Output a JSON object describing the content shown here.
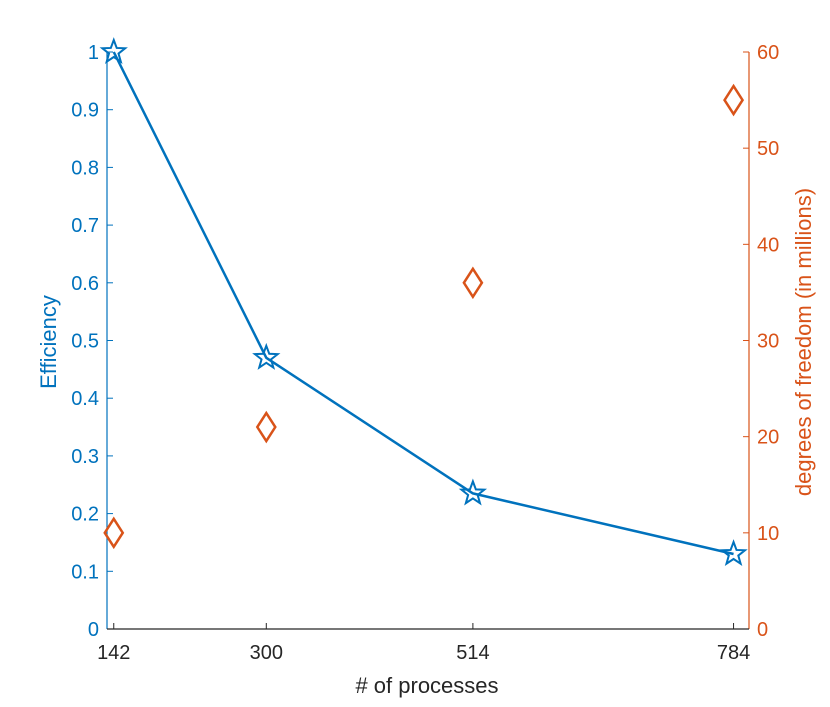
{
  "colors": {
    "left_axis": "#0072BD",
    "right_axis": "#D95319",
    "bottom_axis": "#262626",
    "background": "#ffffff"
  },
  "chart_data": {
    "type": "line",
    "x_ticks": [
      142,
      300,
      514,
      784
    ],
    "x_tick_labels": [
      "142",
      "300",
      "514",
      "784"
    ],
    "xlabel": "# of processes",
    "xlim": [
      135,
      800
    ],
    "left_axis": {
      "label": "Efficiency",
      "ylim": [
        0,
        1
      ],
      "ticks": [
        0,
        0.1,
        0.2,
        0.3,
        0.4,
        0.5,
        0.6,
        0.7,
        0.8,
        0.9,
        1
      ],
      "tick_labels": [
        "0",
        "0.1",
        "0.2",
        "0.3",
        "0.4",
        "0.5",
        "0.6",
        "0.7",
        "0.8",
        "0.9",
        "1"
      ]
    },
    "right_axis": {
      "label": "degrees of freedom (in millions)",
      "ylim": [
        0,
        60
      ],
      "ticks": [
        0,
        10,
        20,
        30,
        40,
        50,
        60
      ],
      "tick_labels": [
        "0",
        "10",
        "20",
        "30",
        "40",
        "50",
        "60"
      ]
    },
    "series": [
      {
        "axis": "left",
        "style": "line-pentagram",
        "color": "#0072BD",
        "x": [
          142,
          300,
          514,
          784
        ],
        "y": [
          1.0,
          0.47,
          0.235,
          0.13
        ]
      },
      {
        "axis": "right",
        "style": "diamond-markers",
        "color": "#D95319",
        "x": [
          142,
          300,
          514,
          784
        ],
        "y": [
          10,
          21,
          36,
          55
        ]
      }
    ],
    "grid": false,
    "legend": "none"
  }
}
